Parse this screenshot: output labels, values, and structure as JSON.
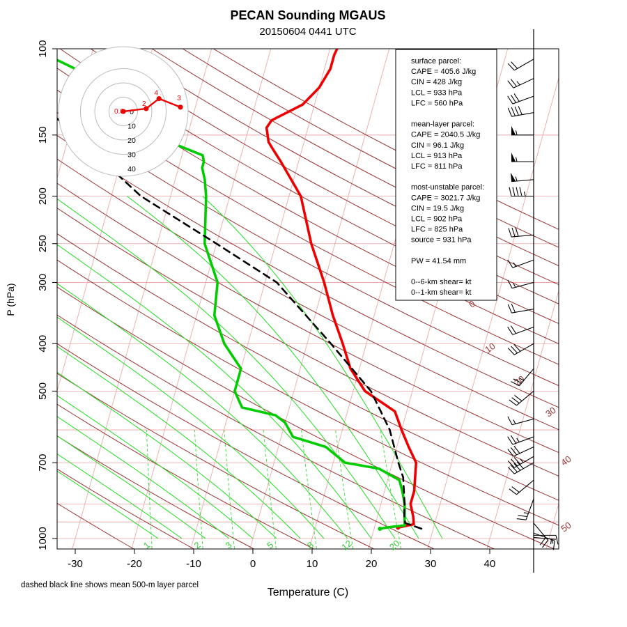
{
  "colors": {
    "temperature": "#ee0000",
    "dewpoint": "#00cc00",
    "parcel": "#000000",
    "isotherm": "#e8a0a0",
    "isobar": "#e8a0a0",
    "dry_adiabat": "#993333",
    "moist_adiabat": "#33dd33",
    "mixing_ratio": "#33dd33",
    "hodograph": "#ee0000"
  },
  "chart_data": {
    "type": "line",
    "title": "PECAN Sounding MGAUS",
    "subtitle": "20150604 0441 UTC",
    "xlabel": "Temperature (C)",
    "ylabel": "P (hPa)",
    "footnote": "dashed black line shows mean 500-m layer parcel",
    "xlim": [
      -35,
      45
    ],
    "ylim": [
      1050,
      100
    ],
    "y_scale": "log",
    "skew": true,
    "x_ticks": [
      "-30",
      "-20",
      "-10",
      "0",
      "10",
      "20",
      "30",
      "40"
    ],
    "y_ticks": [
      "100",
      "150",
      "200",
      "250",
      "300",
      "400",
      "500",
      "700",
      "1000"
    ],
    "y_tick_values": [
      100,
      150,
      200,
      250,
      300,
      400,
      500,
      700,
      1000
    ],
    "isotherm_labels": [
      "0",
      "10",
      "20",
      "30",
      "40",
      "50"
    ],
    "mixing_ratio_labels": [
      "1",
      "2",
      "3",
      "5",
      "8",
      "12",
      "20"
    ],
    "series": [
      {
        "key": "temperature",
        "x": [
          24,
          26.5,
          26,
          25,
          25,
          24,
          22,
          20,
          18,
          12,
          8.5,
          6,
          3,
          0,
          -4,
          -8,
          -13,
          -15,
          -16,
          -17,
          -16.5,
          -12,
          -10,
          -9,
          -9,
          -8.8
        ],
        "y": [
          950,
          935,
          900,
          850,
          800,
          700,
          650,
          600,
          550,
          500,
          450,
          400,
          350,
          300,
          250,
          200,
          170,
          160,
          155,
          145,
          140,
          130,
          120,
          110,
          103,
          100
        ]
      },
      {
        "key": "dewpoint",
        "x": [
          21,
          22,
          23.5,
          25,
          24,
          23,
          22,
          18,
          12,
          8,
          2,
          0,
          -2,
          -8,
          -10,
          -10,
          -14,
          -17,
          -18,
          -22,
          -24,
          -25,
          -26,
          -26,
          -26.5,
          -36,
          -45,
          -52,
          -60
        ],
        "y": [
          955,
          950,
          945,
          940,
          850,
          800,
          760,
          720,
          700,
          650,
          620,
          580,
          560,
          540,
          500,
          450,
          400,
          350,
          300,
          250,
          200,
          185,
          175,
          170,
          165,
          150,
          135,
          110,
          100
        ]
      },
      {
        "key": "parcel",
        "x": [
          28,
          25,
          24.5,
          24,
          22.5,
          21,
          18,
          13,
          4,
          -8,
          -20,
          -35,
          -56,
          -58
        ],
        "y": [
          955,
          930,
          900,
          850,
          750,
          700,
          600,
          500,
          400,
          300,
          250,
          200,
          130,
          125
        ]
      }
    ],
    "stats": [
      "surface parcel:",
      "CAPE = 405.6 J/kg",
      "CIN = 428 J/kg",
      "LCL = 933 hPa",
      "LFC = 560 hPa",
      "",
      "mean-layer parcel:",
      "CAPE = 2040.5 J/kg",
      "CIN = 96.1 J/kg",
      "LCL = 913 hPa",
      "LFC = 811 hPa",
      "",
      "most-unstable parcel:",
      "CAPE = 3021.7 J/kg",
      "CIN = 19.5 J/kg",
      "LCL = 902 hPa",
      "LFC = 825 hPa",
      "source = 931 hPa",
      "",
      "PW =  41.54 mm",
      "",
      "0--6-km shear=  kt",
      "0--1-km shear=  kt"
    ],
    "hodograph": {
      "ring_labels": [
        "0",
        "10",
        "20",
        "30",
        "40"
      ],
      "ring_values": [
        0,
        10,
        20,
        30,
        40
      ],
      "point_labels": [
        "0.0",
        "2",
        "4",
        "3"
      ],
      "u": [
        0,
        8,
        12.5,
        20
      ],
      "v": [
        0,
        1,
        4.5,
        1.5
      ]
    },
    "wind_barbs": [
      {
        "p": 995,
        "dir": 95,
        "spd": 5
      },
      {
        "p": 985,
        "dir": 90,
        "spd": 10
      },
      {
        "p": 975,
        "dir": 110,
        "spd": 15
      },
      {
        "p": 930,
        "dir": 140,
        "spd": 20
      },
      {
        "p": 830,
        "dir": 200,
        "spd": 25
      },
      {
        "p": 760,
        "dir": 230,
        "spd": 20
      },
      {
        "p": 700,
        "dir": 240,
        "spd": 40
      },
      {
        "p": 680,
        "dir": 240,
        "spd": 35
      },
      {
        "p": 650,
        "dir": 245,
        "spd": 30
      },
      {
        "p": 620,
        "dir": 250,
        "spd": 25
      },
      {
        "p": 570,
        "dir": 255,
        "spd": 15
      },
      {
        "p": 500,
        "dir": 230,
        "spd": 30
      },
      {
        "p": 450,
        "dir": 220,
        "spd": 25
      },
      {
        "p": 400,
        "dir": 240,
        "spd": 30
      },
      {
        "p": 370,
        "dir": 250,
        "spd": 20
      },
      {
        "p": 340,
        "dir": 260,
        "spd": 20
      },
      {
        "p": 300,
        "dir": 255,
        "spd": 15
      },
      {
        "p": 270,
        "dir": 250,
        "spd": 15
      },
      {
        "p": 240,
        "dir": 265,
        "spd": 30
      },
      {
        "p": 200,
        "dir": 270,
        "spd": 45
      },
      {
        "p": 185,
        "dir": 265,
        "spd": 55
      },
      {
        "p": 170,
        "dir": 270,
        "spd": 55
      },
      {
        "p": 150,
        "dir": 270,
        "spd": 55
      },
      {
        "p": 135,
        "dir": 260,
        "spd": 40
      },
      {
        "p": 125,
        "dir": 250,
        "spd": 30
      },
      {
        "p": 115,
        "dir": 245,
        "spd": 25
      },
      {
        "p": 105,
        "dir": 240,
        "spd": 20
      }
    ]
  }
}
